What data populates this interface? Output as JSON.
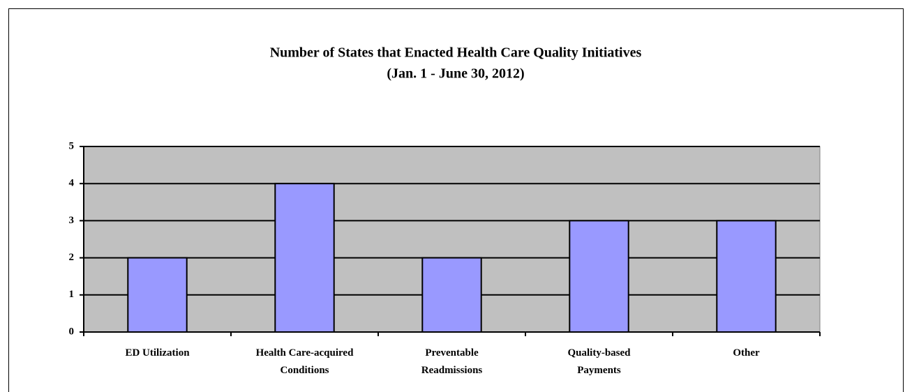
{
  "chart_data": {
    "type": "bar",
    "title": "Number of States that Enacted Health Care Quality Initiatives",
    "subtitle": "(Jan. 1 - June 30, 2012)",
    "categories": [
      "ED Utilization",
      "Health Care-acquired\nConditions",
      "Preventable\nReadmissions",
      "Quality-based\nPayments",
      "Other"
    ],
    "values": [
      2,
      4,
      2,
      3,
      3
    ],
    "color": "#9999ff",
    "plot_background": "#c0c0c0",
    "ylim": [
      0,
      5
    ],
    "yticks": [
      0,
      1,
      2,
      3,
      4,
      5
    ],
    "grid": true
  }
}
